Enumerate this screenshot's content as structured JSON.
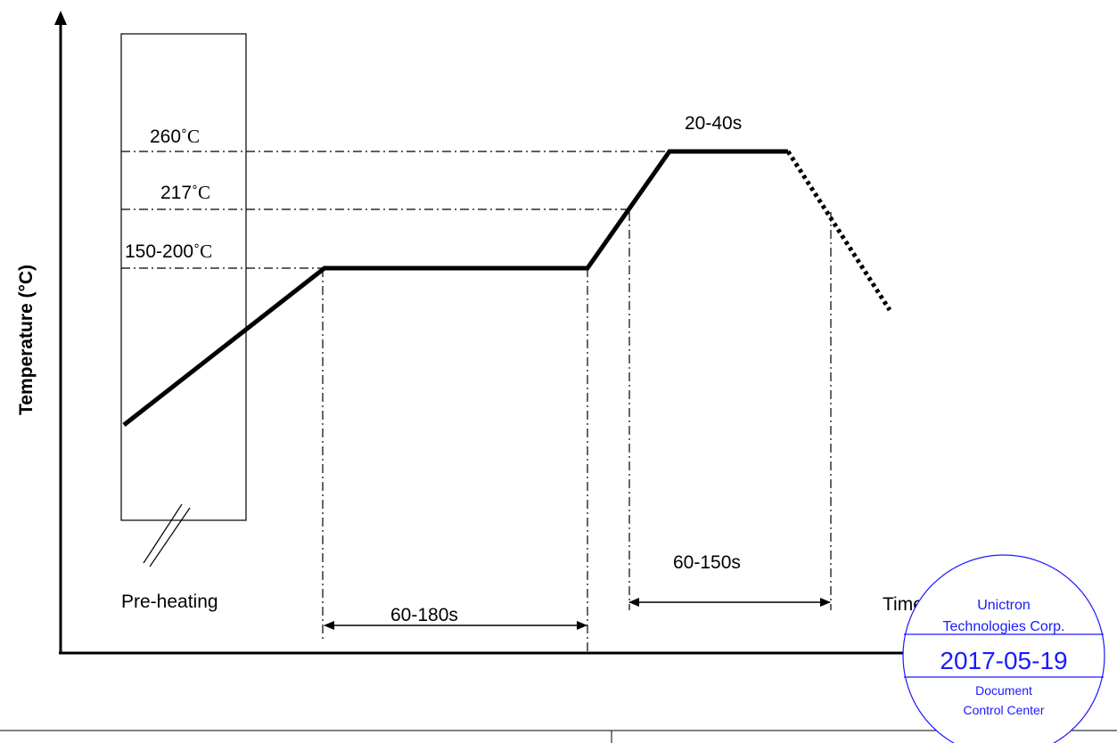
{
  "diagram": {
    "y_axis_label": "Temperature (°C)",
    "x_axis_label": "Time",
    "temp_labels": {
      "peak": "260",
      "liquidus": "217",
      "soak": "150-200",
      "unit": "˚C"
    },
    "durations": {
      "peak_hold": "20-40s",
      "soak": "60-180s",
      "above_liquidus": "60-150s"
    },
    "zone_label": "Pre-heating"
  },
  "stamp": {
    "company_line1": "Unictron",
    "company_line2": "Technologies  Corp.",
    "date": "2017-05-19",
    "dept_line1": "Document",
    "dept_line2": "Control  Center",
    "color": "#1a1aff"
  }
}
